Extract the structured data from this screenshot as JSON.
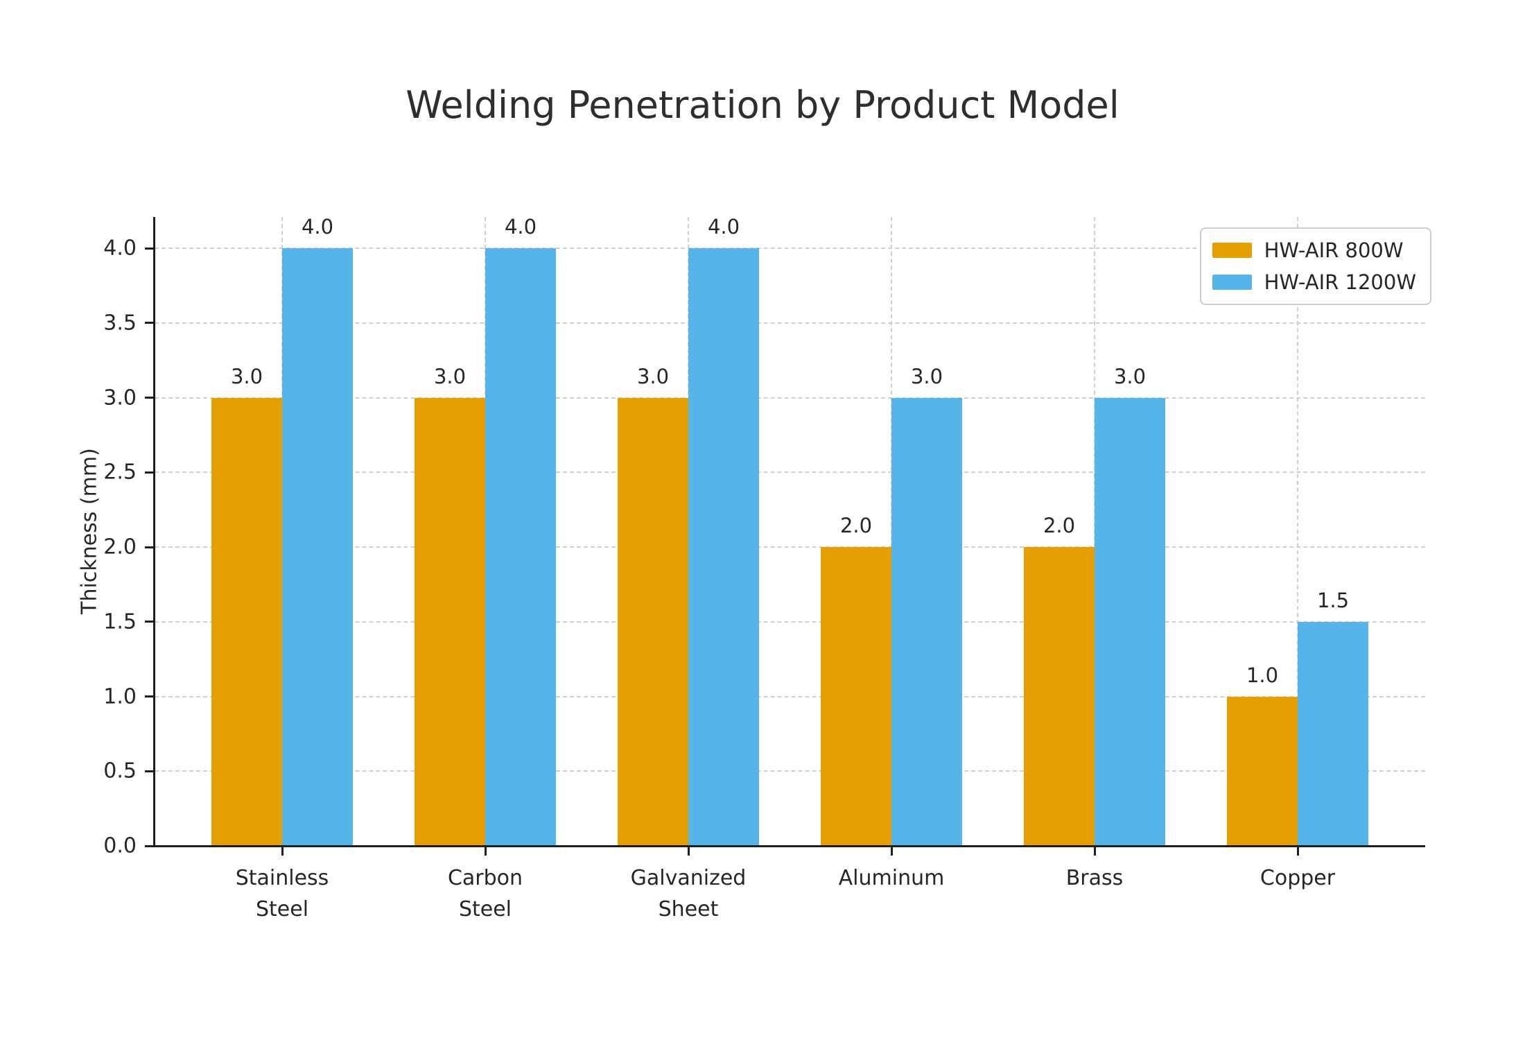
{
  "chart_data": {
    "type": "bar",
    "title": "Welding Penetration by Product Model",
    "xlabel": "",
    "ylabel": "Thickness (mm)",
    "categories": [
      "Stainless\nSteel",
      "Carbon\nSteel",
      "Galvanized\nSheet",
      "Aluminum",
      "Brass",
      "Copper"
    ],
    "series": [
      {
        "name": "HW-AIR 800W",
        "color": "#E69F00",
        "values": [
          3.0,
          3.0,
          3.0,
          2.0,
          2.0,
          1.0
        ]
      },
      {
        "name": "HW-AIR 1200W",
        "color": "#56B4E9",
        "values": [
          4.0,
          4.0,
          4.0,
          3.0,
          3.0,
          1.5
        ]
      }
    ],
    "value_labels": [
      "3.0",
      "4.0",
      "3.0",
      "4.0",
      "3.0",
      "4.0",
      "2.0",
      "3.0",
      "2.0",
      "3.0",
      "1.0",
      "1.5"
    ],
    "yticks": [
      0.0,
      0.5,
      1.0,
      1.5,
      2.0,
      2.5,
      3.0,
      3.5,
      4.0
    ],
    "ylim": [
      0,
      4.21
    ],
    "grid": "dashed, both axes",
    "legend_position": "upper-right",
    "colors": {
      "series_800w": "#E69F00",
      "series_1200w": "#56B4E9",
      "text": "#262626",
      "gridline": "#cfcfcf",
      "axis_spine": "#1e1e1e",
      "background": "#ffffff",
      "legend_border": "#cccccc"
    }
  }
}
